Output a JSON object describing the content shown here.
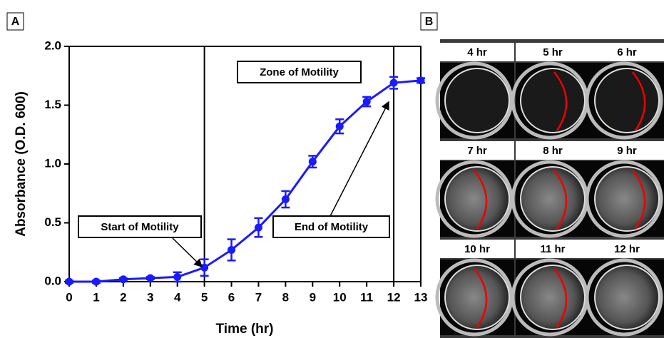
{
  "panels": [
    "A",
    "B"
  ],
  "images": {
    "labels": [
      "4 hr",
      "5 hr",
      "6 hr",
      "7 hr",
      "8 hr",
      "9 hr",
      "10 hr",
      "11 hr",
      "12 hr"
    ]
  },
  "chart_data": {
    "type": "line",
    "x_label": "Time (hr)",
    "y_label": "Absorbance (O.D. 600)",
    "x": [
      0,
      1,
      2,
      3,
      4,
      5,
      6,
      7,
      8,
      9,
      10,
      11,
      12,
      13
    ],
    "series": [
      {
        "color": "#1a1aff",
        "values": [
          0.0,
          0.0,
          0.02,
          0.03,
          0.04,
          0.12,
          0.27,
          0.46,
          0.7,
          1.02,
          1.32,
          1.53,
          1.69,
          1.71
        ],
        "errors": [
          0.01,
          0.01,
          0.01,
          0.01,
          0.04,
          0.07,
          0.09,
          0.08,
          0.07,
          0.05,
          0.06,
          0.04,
          0.05,
          0.02
        ]
      }
    ],
    "xlim": [
      0,
      13
    ],
    "ylim": [
      0,
      2.0
    ],
    "xticks": [
      0,
      1,
      2,
      3,
      4,
      5,
      6,
      7,
      8,
      9,
      10,
      11,
      12,
      13
    ],
    "yticks": [
      {
        "value": 0,
        "label": "0.0"
      },
      {
        "value": 0.5,
        "label": "0.5"
      },
      {
        "value": 1.0,
        "label": "1.0"
      },
      {
        "value": 1.5,
        "label": "1.5"
      },
      {
        "value": 2.0,
        "label": "2.0"
      }
    ],
    "vlines": [
      5,
      12
    ],
    "annotations": [
      "Zone of Motility",
      "Start of Motility",
      "End of Motility"
    ]
  }
}
